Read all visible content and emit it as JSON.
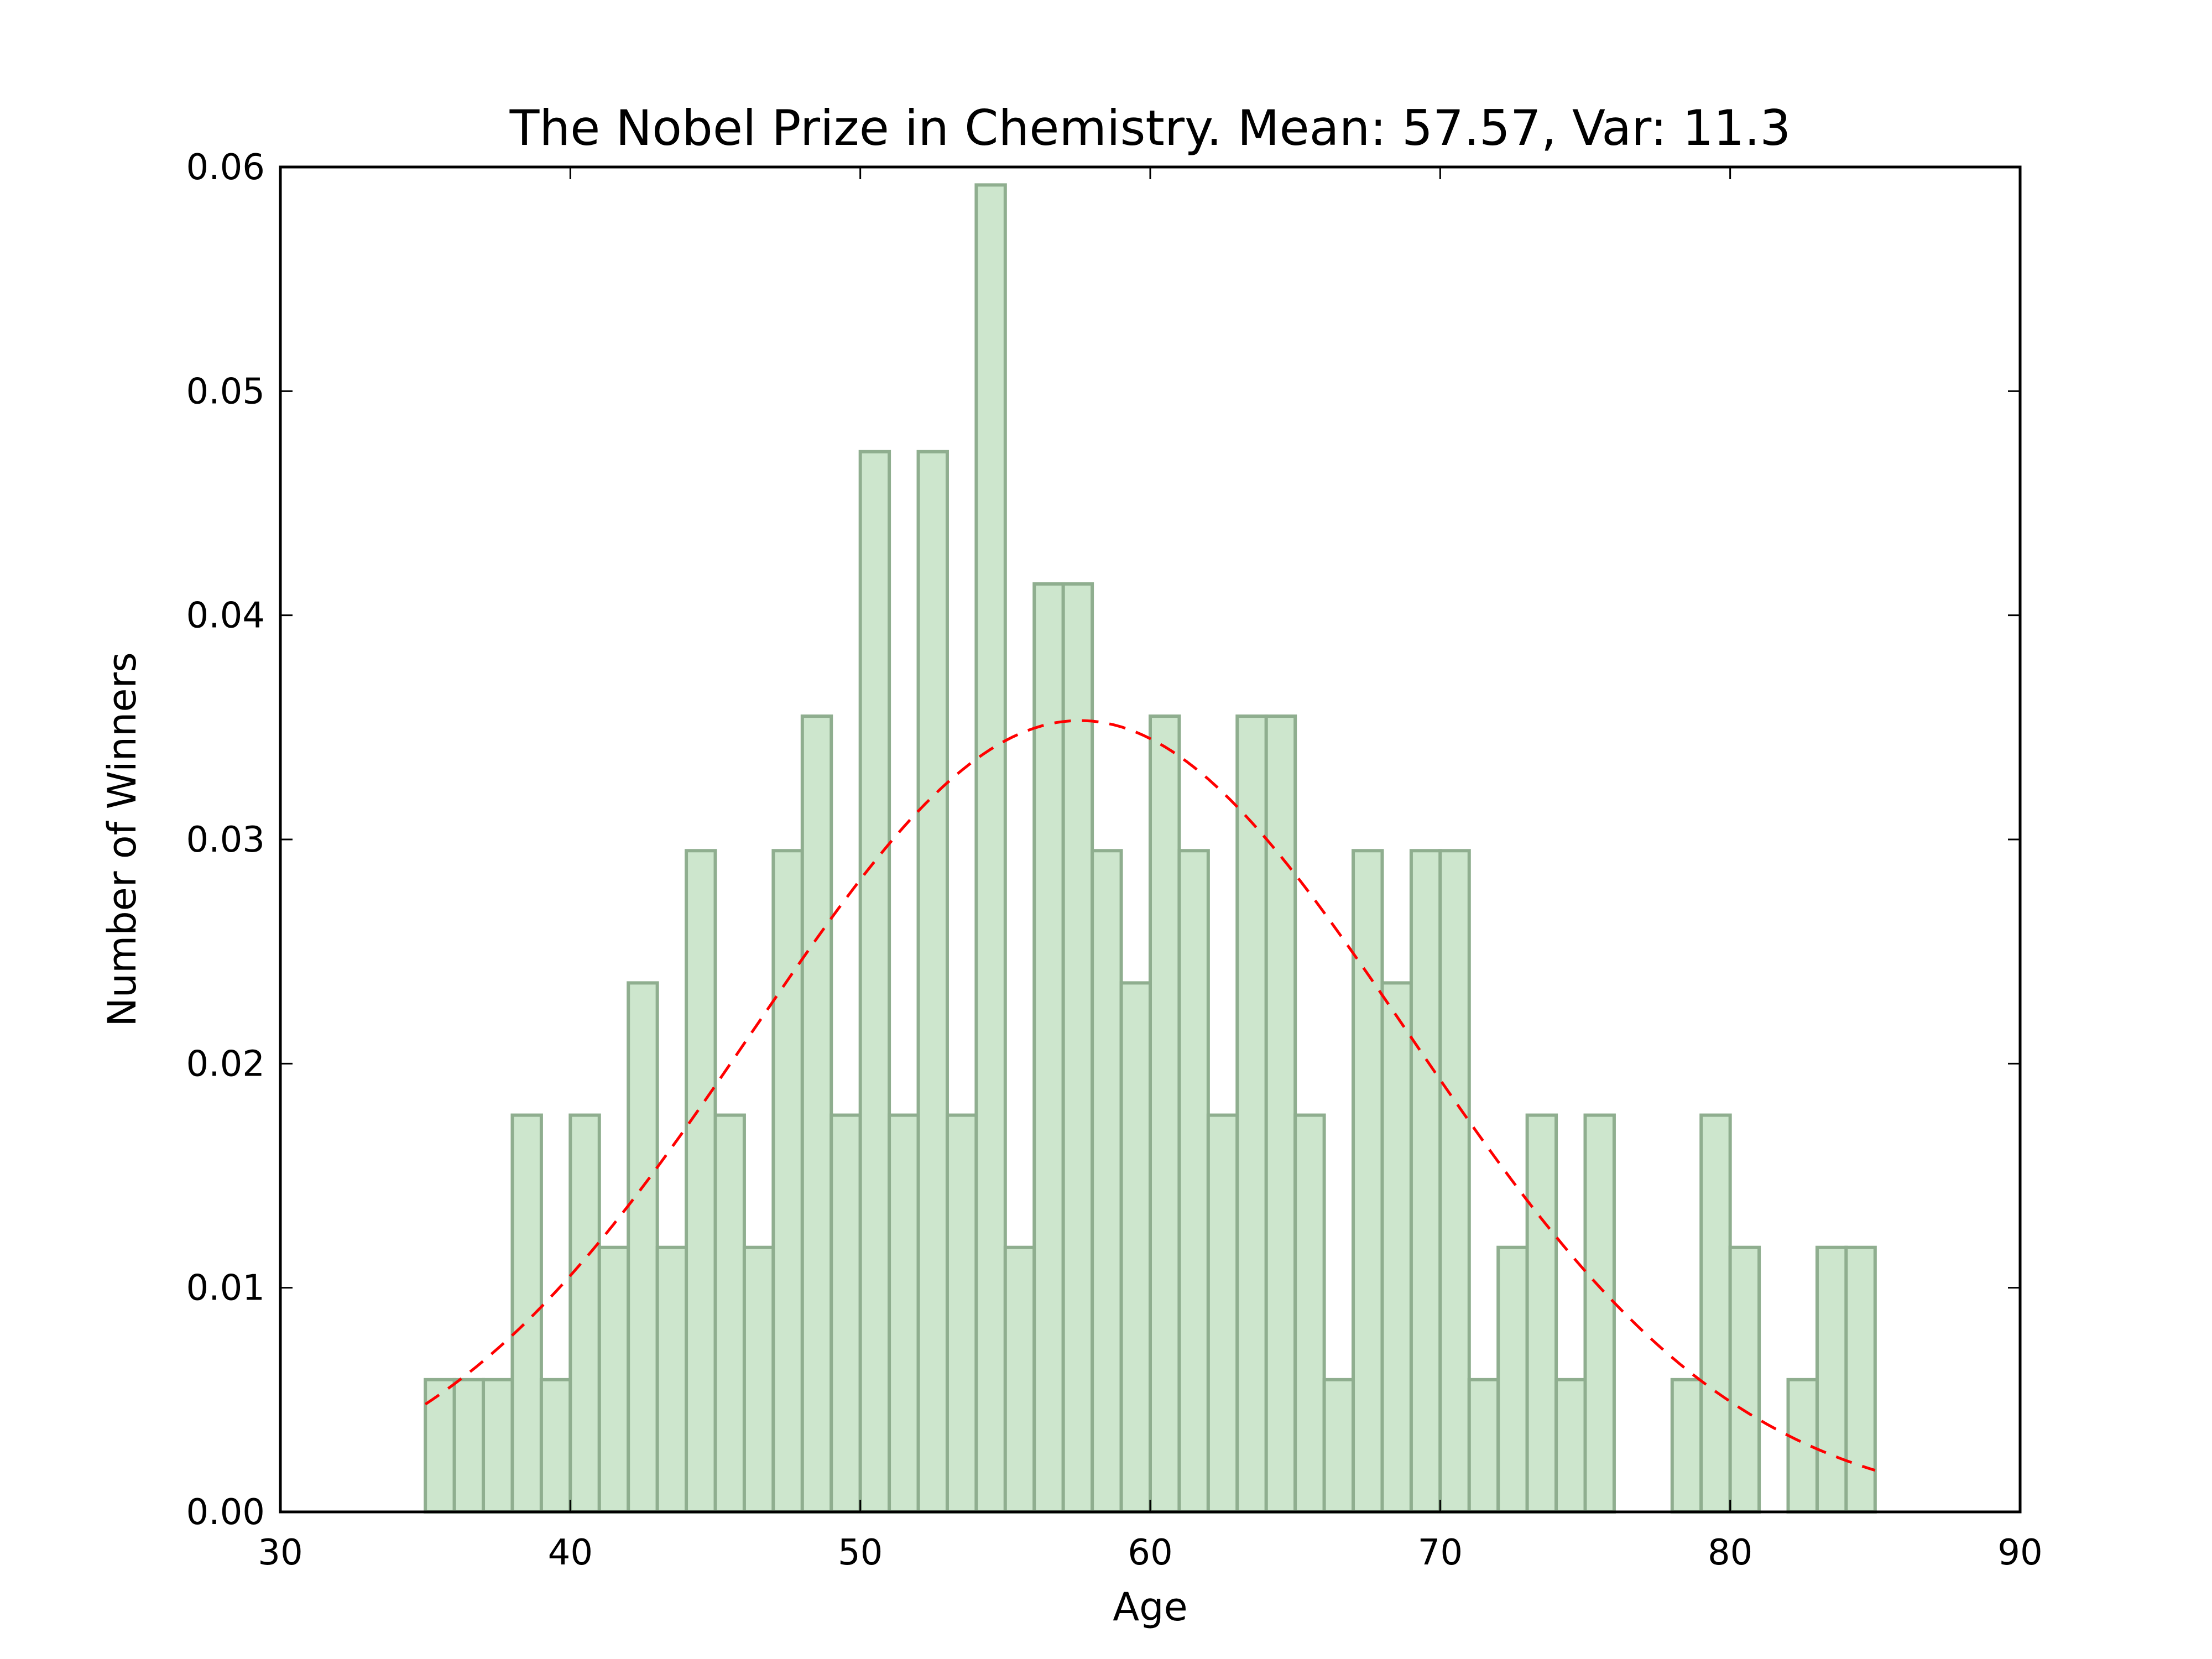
{
  "chart_data": {
    "type": "bar",
    "title": "The Nobel Prize in Chemistry. Mean: 57.57, Var: 11.3",
    "xlabel": "Age",
    "ylabel": "Number of Winners",
    "xlim": [
      30,
      90
    ],
    "ylim": [
      0,
      0.06
    ],
    "xticks": [
      30,
      40,
      50,
      60,
      70,
      80,
      90
    ],
    "yticks": [
      0.0,
      0.01,
      0.02,
      0.03,
      0.04,
      0.05,
      0.06
    ],
    "xtick_labels": [
      "30",
      "40",
      "50",
      "60",
      "70",
      "80",
      "90"
    ],
    "ytick_labels": [
      "0.00",
      "0.01",
      "0.02",
      "0.03",
      "0.04",
      "0.05",
      "0.06"
    ],
    "grid": false,
    "histogram": {
      "bin_start": 35,
      "bin_width": 1,
      "bin_edges": [
        35,
        36,
        37,
        38,
        39,
        40,
        41,
        42,
        43,
        44,
        45,
        46,
        47,
        48,
        49,
        50,
        51,
        52,
        53,
        54,
        55,
        56,
        57,
        58,
        59,
        60,
        61,
        62,
        63,
        64,
        65,
        66,
        67,
        68,
        69,
        70,
        71,
        72,
        73,
        74,
        75,
        76,
        77,
        78,
        79,
        80,
        81,
        82,
        83,
        84,
        85
      ],
      "values": [
        0.0059,
        0.0059,
        0.0059,
        0.0177,
        0.0059,
        0.0177,
        0.0118,
        0.0236,
        0.0118,
        0.0295,
        0.0177,
        0.0118,
        0.0295,
        0.0355,
        0.0177,
        0.0473,
        0.0177,
        0.0473,
        0.0177,
        0.0592,
        0.0118,
        0.0414,
        0.0414,
        0.0295,
        0.0236,
        0.0355,
        0.0295,
        0.0177,
        0.0355,
        0.0355,
        0.0177,
        0.0059,
        0.0295,
        0.0236,
        0.0295,
        0.0295,
        0.0059,
        0.0118,
        0.0177,
        0.0059,
        0.0177,
        0,
        0,
        0.0059,
        0.0177,
        0.0118,
        0,
        0.0059,
        0.0118,
        0.0118
      ],
      "color": "#cde6cd",
      "edge_color": "#8fae8f"
    },
    "fit_curve": {
      "style": "dashed",
      "color": "#ff0000",
      "mean": 57.57,
      "std": 11.3,
      "x_range": [
        35,
        85
      ]
    }
  }
}
